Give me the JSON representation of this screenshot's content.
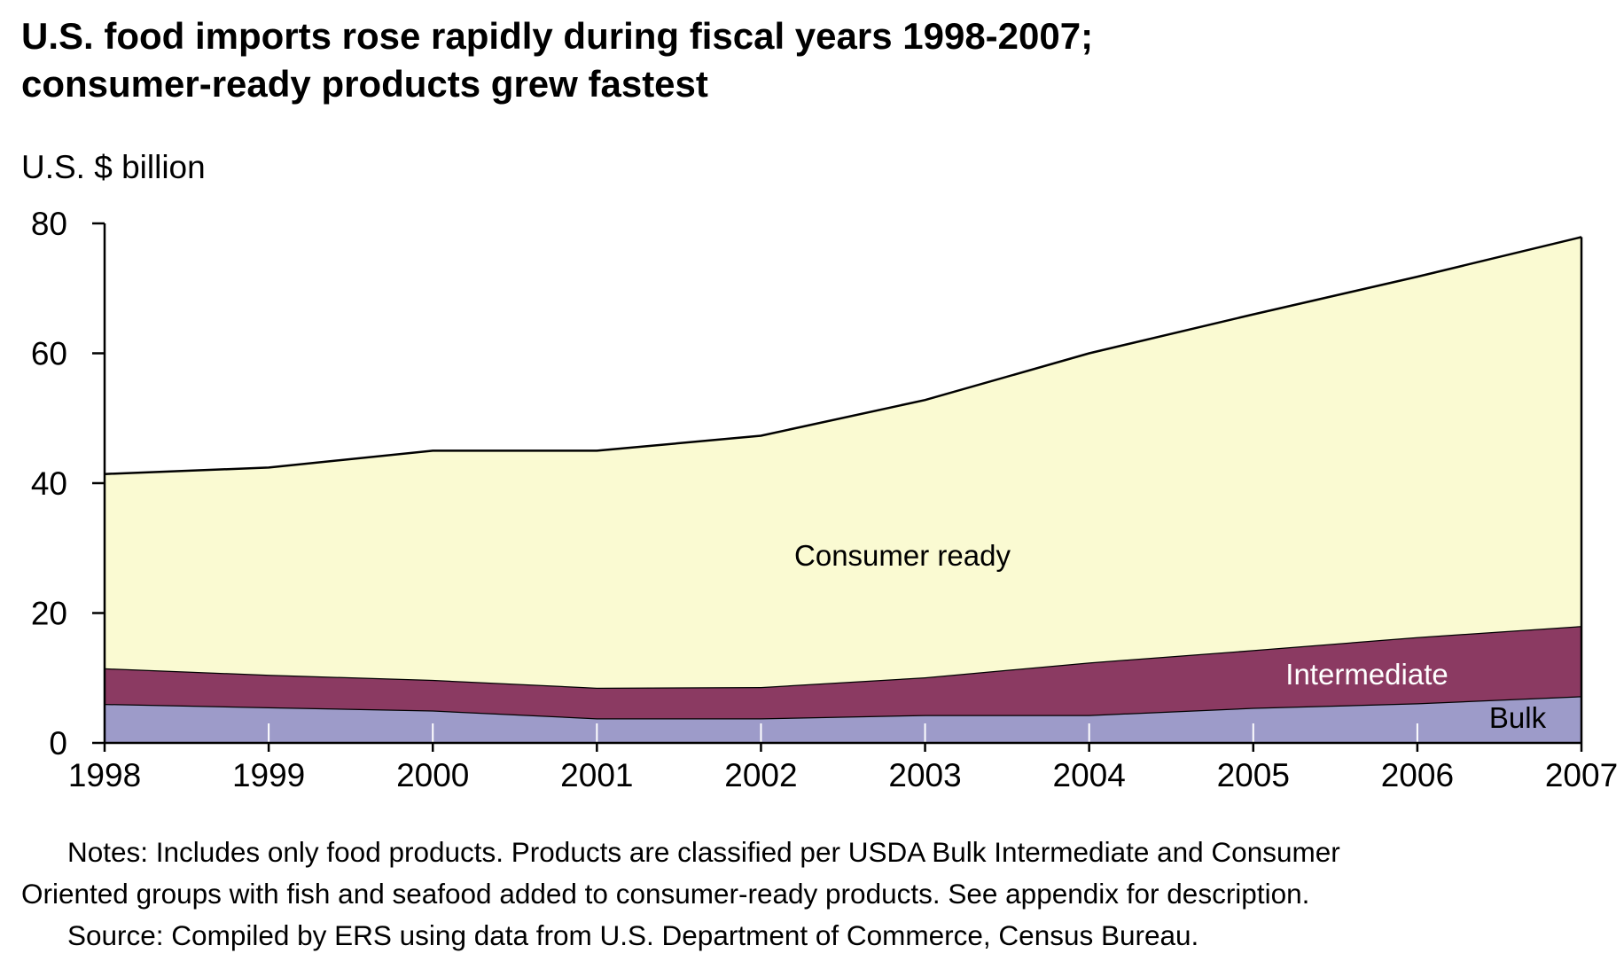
{
  "chart_data": {
    "type": "area",
    "stacked": true,
    "title_lines": [
      "U.S. food imports rose rapidly during fiscal years 1998-2007;",
      "consumer-ready products grew fastest"
    ],
    "ylabel": "U.S. $ billion",
    "xlabel": "",
    "ylim": [
      0,
      80
    ],
    "yticks": [
      "0",
      "20",
      "40",
      "60",
      "80"
    ],
    "ytick_values": [
      0,
      20,
      40,
      60,
      80
    ],
    "categories": [
      "1998",
      "1999",
      "2000",
      "2001",
      "2002",
      "2003",
      "2004",
      "2005",
      "2006",
      "2007"
    ],
    "series": [
      {
        "name": "Bulk",
        "color": "#9d9bc9",
        "values": [
          6,
          5.5,
          5,
          3.8,
          3.8,
          4.3,
          4.3,
          5.4,
          6.1,
          7.2
        ]
      },
      {
        "name": "Intermediate",
        "color": "#8b3a62",
        "values": [
          5.5,
          5,
          4.7,
          4.7,
          4.8,
          5.8,
          8.1,
          8.9,
          10.2,
          10.8
        ]
      },
      {
        "name": "Consumer ready",
        "color": "#fafad2",
        "values": [
          29.9,
          31.9,
          35.3,
          36.5,
          38.7,
          42.7,
          47.6,
          51.7,
          55.5,
          59.9
        ]
      }
    ],
    "legend_placement": "inline labels on areas",
    "grid": false
  },
  "notes": {
    "line1": "Notes: Includes only food products. Products are classified per USDA Bulk Intermediate and Consumer",
    "line2": "Oriented groups with fish and seafood added to consumer-ready products. See appendix for description.",
    "line3": "Source: Compiled by ERS using data from U.S. Department of Commerce, Census Bureau."
  }
}
